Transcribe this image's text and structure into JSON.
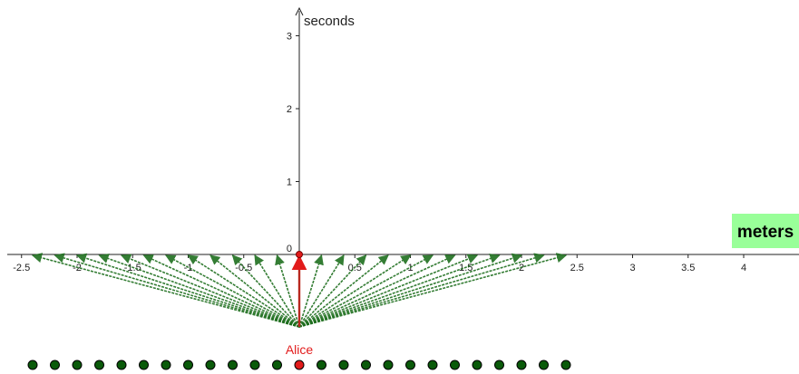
{
  "colors": {
    "axis": "#222222",
    "arrow_green": "#1f6f1f",
    "dot_green": "#0a5a0a",
    "highlight_red": "#e21b1b",
    "meters_box_bg": "#99ff99"
  },
  "chart_data": {
    "type": "scatter",
    "x_axis": {
      "range": [
        -2.6,
        4.5
      ],
      "tick_labels": [
        "-2.5",
        "-2",
        "-1.5",
        "-1",
        "-0.5",
        "0.5",
        "1",
        "1.5",
        "2",
        "2.5",
        "3",
        "3.5",
        "4"
      ]
    },
    "y_axis": {
      "label": "seconds",
      "range": [
        0,
        3.3
      ],
      "tick_labels": [
        "0",
        "1",
        "2",
        "3"
      ]
    },
    "units_box": "meters",
    "observer": {
      "name": "Alice",
      "x": 0
    },
    "arrow_endpoints_x": [
      -2.4,
      -2.2,
      -2.0,
      -1.8,
      -1.6,
      -1.4,
      -1.2,
      -1.0,
      -0.8,
      -0.6,
      -0.4,
      -0.2,
      0,
      0.2,
      0.4,
      0.6,
      0.8,
      1.0,
      1.2,
      1.4,
      1.6,
      1.8,
      2.0,
      2.2,
      2.4
    ],
    "dots_x": [
      -2.4,
      -2.2,
      -2.0,
      -1.8,
      -1.6,
      -1.4,
      -1.2,
      -1.0,
      -0.8,
      -0.6,
      -0.4,
      -0.2,
      0,
      0.2,
      0.4,
      0.6,
      0.8,
      1.0,
      1.2,
      1.4,
      1.6,
      1.8,
      2.0,
      2.2,
      2.4
    ],
    "highlighted_x": 0
  }
}
